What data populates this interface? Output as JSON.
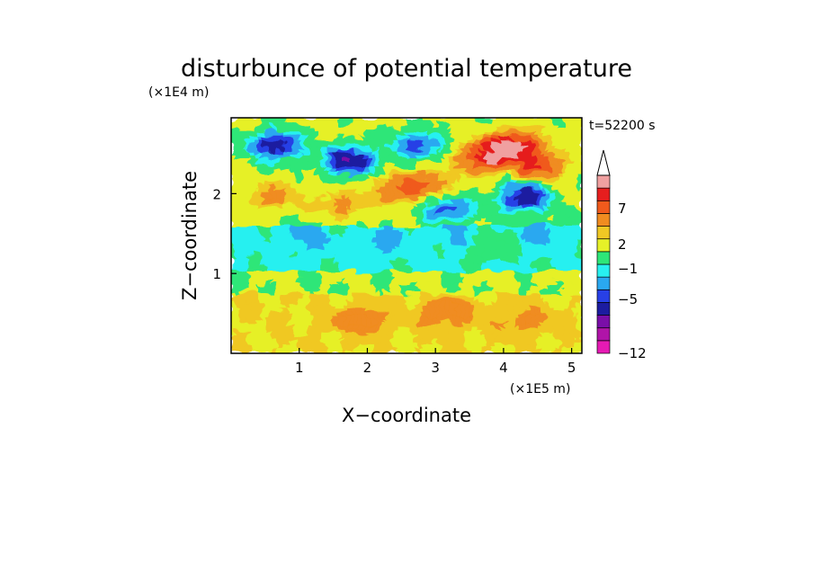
{
  "chart_data": {
    "type": "heatmap",
    "title": "disturbunce of potential temperature",
    "xlabel": "X−coordinate",
    "ylabel": "Z−coordinate",
    "x_multiplier": "(×1E5 m)",
    "y_multiplier": "(×1E4 m)",
    "time_label": "t=52200 s",
    "xlim": [
      0,
      5.15
    ],
    "ylim": [
      0,
      2.95
    ],
    "x_ticks": [
      "1",
      "2",
      "3",
      "4",
      "5"
    ],
    "x_tick_values": [
      1,
      2,
      3,
      4,
      5
    ],
    "y_ticks": [
      "1",
      "2"
    ],
    "y_tick_values": [
      1,
      2
    ],
    "colorbar": {
      "labels": [
        "7",
        "2",
        "−1",
        "−5",
        "−12"
      ],
      "label_values": [
        7,
        2,
        -1,
        -5,
        -12
      ],
      "colors_bottom_to_top": [
        "#e61ab4",
        "#b014a8",
        "#7a0ea8",
        "#1c1ca0",
        "#2840e6",
        "#2aa8f0",
        "#28f0f0",
        "#2ee678",
        "#e6f028",
        "#f0c824",
        "#f08c20",
        "#f05a1c",
        "#e61e1e",
        "#f0a0a0"
      ],
      "extends_top": true
    },
    "features": [
      {
        "x": 0.65,
        "z": 2.6,
        "value": -7
      },
      {
        "x": 1.75,
        "z": 2.4,
        "value": -8
      },
      {
        "x": 2.75,
        "z": 2.6,
        "value": -5
      },
      {
        "x": 2.45,
        "z": 2.05,
        "value": 4
      },
      {
        "x": 2.9,
        "z": 2.1,
        "value": 4
      },
      {
        "x": 3.2,
        "z": 1.8,
        "value": -5
      },
      {
        "x": 3.75,
        "z": 2.45,
        "value": 8
      },
      {
        "x": 4.15,
        "z": 2.6,
        "value": 9
      },
      {
        "x": 4.5,
        "z": 2.35,
        "value": 6
      },
      {
        "x": 4.3,
        "z": 1.95,
        "value": -7
      },
      {
        "x": 0.6,
        "z": 1.95,
        "value": 3
      },
      {
        "x": 1.6,
        "z": 1.85,
        "value": 3
      },
      {
        "x": 1.1,
        "z": 1.45,
        "value": -1.5
      },
      {
        "x": 2.2,
        "z": 1.4,
        "value": -1.5
      },
      {
        "x": 3.5,
        "z": 1.4,
        "value": -1.5
      },
      {
        "x": 4.6,
        "z": 1.5,
        "value": -1.5
      },
      {
        "x": 3.8,
        "z": 1.35,
        "value": 2
      },
      {
        "x": 1.9,
        "z": 0.4,
        "value": 3
      },
      {
        "x": 3.2,
        "z": 0.5,
        "value": 3
      },
      {
        "x": 4.3,
        "z": 0.4,
        "value": 2
      }
    ]
  }
}
